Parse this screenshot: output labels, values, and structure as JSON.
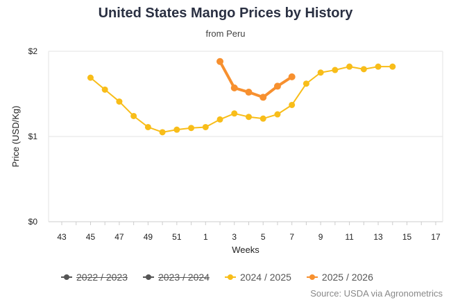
{
  "chart_data": {
    "type": "line",
    "title": "United States Mango Prices by History",
    "subtitle": "from Peru",
    "xlabel": "Weeks",
    "ylabel": "Price (USD/Kg)",
    "x": [
      43,
      44,
      45,
      46,
      47,
      48,
      49,
      50,
      51,
      52,
      1,
      2,
      3,
      4,
      5,
      6,
      7,
      8,
      9,
      10,
      11,
      12,
      13,
      14,
      15,
      16,
      17
    ],
    "x_tick_labels": [
      "43",
      "45",
      "47",
      "49",
      "51",
      "1",
      "3",
      "5",
      "7",
      "9",
      "11",
      "13",
      "15",
      "17"
    ],
    "y_tick_labels": [
      "$0",
      "$1",
      "$2"
    ],
    "ylim": [
      0,
      2
    ],
    "grid": true,
    "legend_placement": "bottom",
    "series": [
      {
        "name": "2022 / 2023",
        "color": "#555555",
        "hidden": true,
        "points": []
      },
      {
        "name": "2023 / 2024",
        "color": "#555555",
        "hidden": true,
        "points": []
      },
      {
        "name": "2024 / 2025",
        "color": "#f8bd19",
        "hidden": false,
        "points": [
          [
            45,
            1.69
          ],
          [
            46,
            1.55
          ],
          [
            47,
            1.41
          ],
          [
            48,
            1.24
          ],
          [
            49,
            1.11
          ],
          [
            50,
            1.05
          ],
          [
            51,
            1.08
          ],
          [
            52,
            1.1
          ],
          [
            1,
            1.11
          ],
          [
            2,
            1.2
          ],
          [
            3,
            1.27
          ],
          [
            4,
            1.23
          ],
          [
            5,
            1.21
          ],
          [
            6,
            1.26
          ],
          [
            7,
            1.37
          ],
          [
            8,
            1.62
          ],
          [
            9,
            1.75
          ],
          [
            10,
            1.78
          ],
          [
            11,
            1.82
          ],
          [
            12,
            1.79
          ],
          [
            13,
            1.82
          ],
          [
            14,
            1.82
          ]
        ]
      },
      {
        "name": "2025 / 2026",
        "color": "#f7902f",
        "hidden": false,
        "points": [
          [
            2,
            1.88
          ],
          [
            3,
            1.57
          ],
          [
            4,
            1.52
          ],
          [
            5,
            1.46
          ],
          [
            6,
            1.59
          ],
          [
            7,
            1.7
          ]
        ]
      }
    ]
  },
  "source": "Source: USDA via Agronometrics"
}
